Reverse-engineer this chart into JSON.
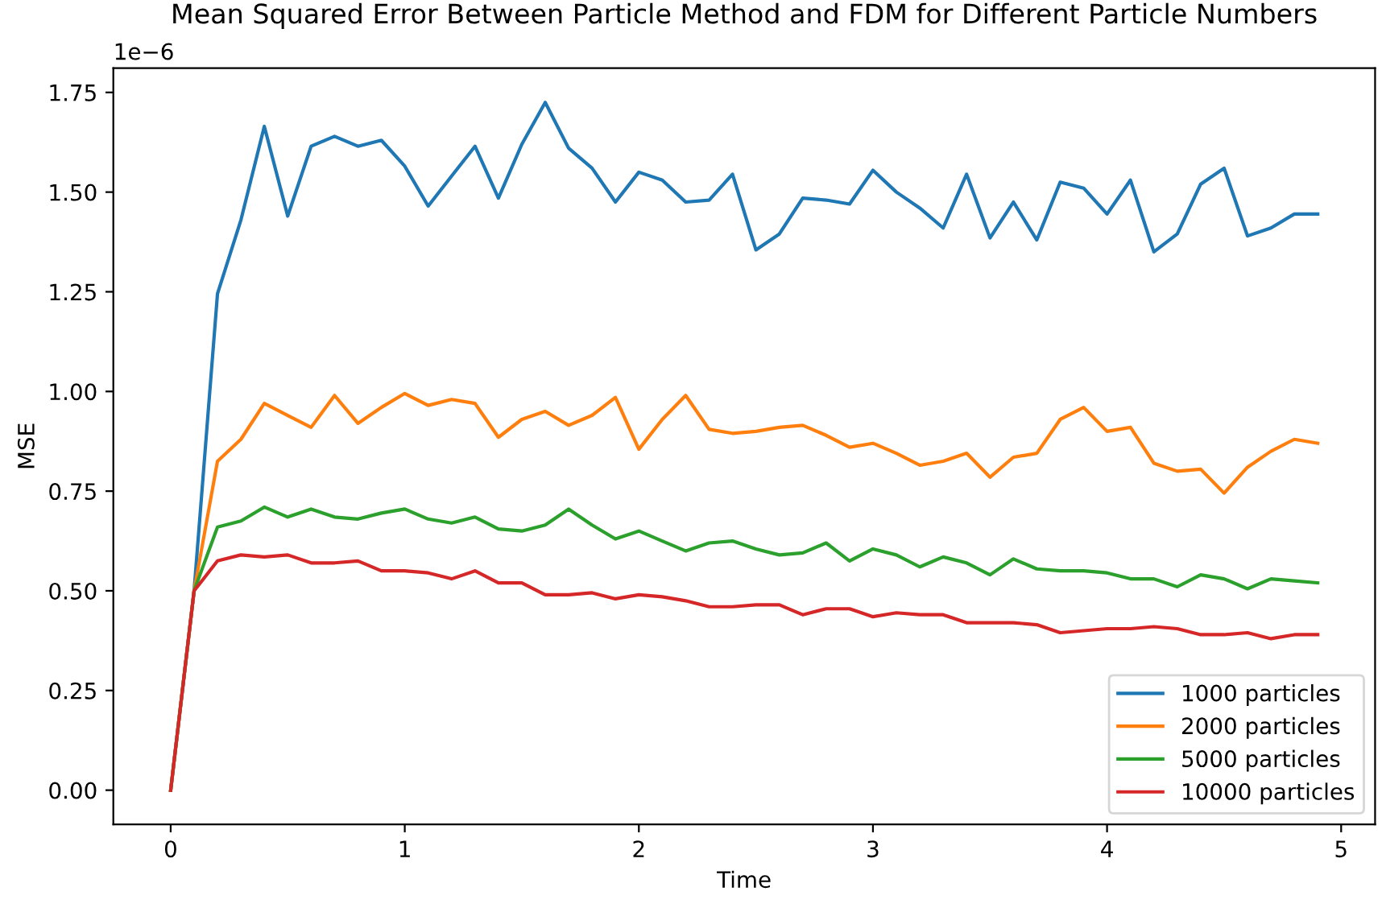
{
  "chart_data": {
    "type": "line",
    "title": "Mean Squared Error Between Particle Method and FDM for Different Particle Numbers",
    "xlabel": "Time",
    "ylabel": "MSE",
    "x": [
      0,
      0.1,
      0.2,
      0.3,
      0.4,
      0.5,
      0.6,
      0.7,
      0.8,
      0.9,
      1.0,
      1.1,
      1.2,
      1.3,
      1.4,
      1.5,
      1.6,
      1.7,
      1.8,
      1.9,
      2.0,
      2.1,
      2.2,
      2.3,
      2.4,
      2.5,
      2.6,
      2.7,
      2.8,
      2.9,
      3.0,
      3.1,
      3.2,
      3.3,
      3.4,
      3.5,
      3.6,
      3.7,
      3.8,
      3.9,
      4.0,
      4.1,
      4.2,
      4.3,
      4.4,
      4.5,
      4.6,
      4.7,
      4.8,
      4.9
    ],
    "series": [
      {
        "name": "1000 particles",
        "color": "#1f77b4",
        "values": [
          0,
          0.5,
          1.245,
          1.43,
          1.665,
          1.44,
          1.615,
          1.64,
          1.615,
          1.63,
          1.565,
          1.465,
          1.54,
          1.615,
          1.485,
          1.62,
          1.725,
          1.61,
          1.56,
          1.475,
          1.55,
          1.53,
          1.475,
          1.48,
          1.545,
          1.355,
          1.395,
          1.485,
          1.48,
          1.47,
          1.555,
          1.5,
          1.46,
          1.41,
          1.545,
          1.385,
          1.475,
          1.38,
          1.525,
          1.51,
          1.445,
          1.53,
          1.35,
          1.395,
          1.52,
          1.56,
          1.39,
          1.41,
          1.445,
          1.445
        ]
      },
      {
        "name": "2000 particles",
        "color": "#ff7f0e",
        "values": [
          0,
          0.5,
          0.825,
          0.88,
          0.97,
          0.94,
          0.91,
          0.99,
          0.92,
          0.96,
          0.995,
          0.965,
          0.98,
          0.97,
          0.885,
          0.93,
          0.95,
          0.915,
          0.94,
          0.985,
          0.855,
          0.93,
          0.99,
          0.905,
          0.895,
          0.9,
          0.91,
          0.915,
          0.89,
          0.86,
          0.87,
          0.845,
          0.815,
          0.825,
          0.845,
          0.785,
          0.835,
          0.845,
          0.93,
          0.96,
          0.9,
          0.91,
          0.82,
          0.8,
          0.805,
          0.745,
          0.81,
          0.85,
          0.88,
          0.87
        ]
      },
      {
        "name": "5000 particles",
        "color": "#2ca02c",
        "values": [
          0,
          0.5,
          0.66,
          0.675,
          0.71,
          0.685,
          0.705,
          0.685,
          0.68,
          0.695,
          0.705,
          0.68,
          0.67,
          0.685,
          0.655,
          0.65,
          0.665,
          0.705,
          0.665,
          0.63,
          0.65,
          0.625,
          0.6,
          0.62,
          0.625,
          0.605,
          0.59,
          0.595,
          0.62,
          0.575,
          0.605,
          0.59,
          0.56,
          0.585,
          0.57,
          0.54,
          0.58,
          0.555,
          0.55,
          0.55,
          0.545,
          0.53,
          0.53,
          0.51,
          0.54,
          0.53,
          0.505,
          0.53,
          0.525,
          0.52
        ]
      },
      {
        "name": "10000 particles",
        "color": "#d62728",
        "values": [
          0,
          0.5,
          0.575,
          0.59,
          0.585,
          0.59,
          0.57,
          0.57,
          0.575,
          0.55,
          0.55,
          0.545,
          0.53,
          0.55,
          0.52,
          0.52,
          0.49,
          0.49,
          0.495,
          0.48,
          0.49,
          0.485,
          0.475,
          0.46,
          0.46,
          0.465,
          0.465,
          0.44,
          0.455,
          0.455,
          0.435,
          0.445,
          0.44,
          0.44,
          0.42,
          0.42,
          0.42,
          0.415,
          0.395,
          0.4,
          0.405,
          0.405,
          0.41,
          0.405,
          0.39,
          0.39,
          0.395,
          0.38,
          0.39,
          0.39
        ]
      }
    ],
    "xlim": [
      -0.245,
      5.145
    ],
    "xticks": [
      0,
      1,
      2,
      3,
      4,
      5
    ],
    "ylim": [
      -0.086,
      1.811
    ],
    "yticks": [
      {
        "value": 0,
        "label": "0.00"
      },
      0.25,
      {
        "value": 0.5,
        "label": "0.50"
      },
      0.75,
      {
        "value": 1.0,
        "label": "1.00"
      },
      1.25,
      {
        "value": 1.5,
        "label": "1.50"
      },
      1.75
    ],
    "annotations": [
      "1e−6"
    ],
    "legend": "lower right",
    "grid": false,
    "marker": "none",
    "line_style": "solid"
  }
}
